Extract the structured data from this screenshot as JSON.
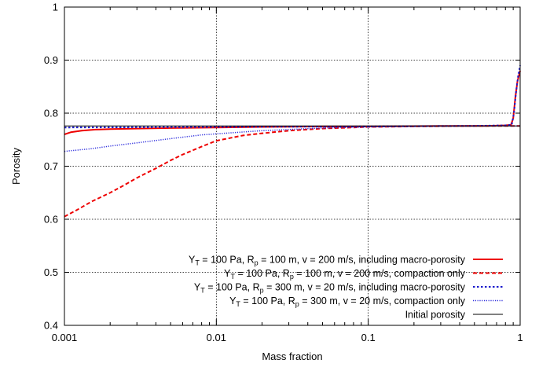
{
  "chart_data": {
    "type": "line",
    "xlabel": "Mass fraction",
    "ylabel": "Porosity",
    "xscale": "log",
    "xlim": [
      0.001,
      1
    ],
    "ylim": [
      0.4,
      1
    ],
    "grid": true,
    "legend_position": "bottom-right",
    "x_ticks": [
      {
        "value": 0.001,
        "label": "0.001"
      },
      {
        "value": 0.01,
        "label": "0.01"
      },
      {
        "value": 0.1,
        "label": "0.1"
      },
      {
        "value": 1,
        "label": "1"
      }
    ],
    "y_ticks": [
      {
        "value": 0.4,
        "label": "0.4"
      },
      {
        "value": 0.5,
        "label": "0.5"
      },
      {
        "value": 0.6,
        "label": "0.6"
      },
      {
        "value": 0.7,
        "label": "0.7"
      },
      {
        "value": 0.8,
        "label": "0.8"
      },
      {
        "value": 0.9,
        "label": "0.9"
      },
      {
        "value": 1.0,
        "label": "1"
      }
    ],
    "series": [
      {
        "legend": {
          "pre": "Y",
          "sub1": "T",
          "mid": " = 100 Pa, R",
          "sub2": "p",
          "post": " = 100 m, v = 200 m/s, including macro-porosity"
        },
        "color": "#ee0000",
        "style": "solid",
        "width": 2,
        "points": [
          [
            0.001,
            0.76
          ],
          [
            0.0011,
            0.764
          ],
          [
            0.0013,
            0.767
          ],
          [
            0.0016,
            0.769
          ],
          [
            0.002,
            0.77
          ],
          [
            0.003,
            0.771
          ],
          [
            0.005,
            0.772
          ],
          [
            0.01,
            0.773
          ],
          [
            0.02,
            0.774
          ],
          [
            0.05,
            0.775
          ],
          [
            0.1,
            0.775
          ],
          [
            0.3,
            0.776
          ],
          [
            0.6,
            0.776
          ],
          [
            0.8,
            0.777
          ],
          [
            0.87,
            0.778
          ],
          [
            0.9,
            0.79
          ],
          [
            0.93,
            0.83
          ],
          [
            0.96,
            0.86
          ],
          [
            1.0,
            0.88
          ]
        ]
      },
      {
        "legend": {
          "pre": "Y",
          "sub1": "T",
          "mid": " = 100 Pa, R",
          "sub2": "p",
          "post": " = 100 m, v = 200 m/s, compaction only"
        },
        "color": "#ee0000",
        "style": "dashed",
        "width": 2,
        "points": [
          [
            0.001,
            0.605
          ],
          [
            0.0012,
            0.617
          ],
          [
            0.0015,
            0.633
          ],
          [
            0.002,
            0.65
          ],
          [
            0.0025,
            0.665
          ],
          [
            0.003,
            0.678
          ],
          [
            0.004,
            0.696
          ],
          [
            0.005,
            0.711
          ],
          [
            0.006,
            0.722
          ],
          [
            0.007,
            0.73
          ],
          [
            0.008,
            0.737
          ],
          [
            0.01,
            0.748
          ],
          [
            0.015,
            0.758
          ],
          [
            0.02,
            0.762
          ],
          [
            0.03,
            0.767
          ],
          [
            0.05,
            0.771
          ],
          [
            0.1,
            0.774
          ],
          [
            0.2,
            0.775
          ],
          [
            0.5,
            0.776
          ],
          [
            1.0,
            0.776
          ]
        ]
      },
      {
        "legend": {
          "pre": "Y",
          "sub1": "T",
          "mid": " = 100 Pa, R",
          "sub2": "p",
          "post": " = 300 m, v = 20 m/s, including macro-porosity"
        },
        "color": "#1a1acc",
        "style": "dotted",
        "width": 2,
        "points": [
          [
            0.001,
            0.773
          ],
          [
            0.01,
            0.774
          ],
          [
            0.1,
            0.775
          ],
          [
            0.5,
            0.776
          ],
          [
            0.8,
            0.777
          ],
          [
            0.88,
            0.778
          ],
          [
            0.91,
            0.8
          ],
          [
            0.94,
            0.84
          ],
          [
            0.97,
            0.87
          ],
          [
            1.0,
            0.89
          ]
        ]
      },
      {
        "legend": {
          "pre": "Y",
          "sub1": "T",
          "mid": " = 100 Pa, R",
          "sub2": "p",
          "post": " = 300 m, v = 20 m/s, compaction only"
        },
        "color": "#3030dd",
        "style": "finedotted",
        "width": 1.5,
        "points": [
          [
            0.001,
            0.728
          ],
          [
            0.0015,
            0.733
          ],
          [
            0.002,
            0.738
          ],
          [
            0.003,
            0.744
          ],
          [
            0.005,
            0.752
          ],
          [
            0.008,
            0.759
          ],
          [
            0.01,
            0.761
          ],
          [
            0.02,
            0.767
          ],
          [
            0.05,
            0.772
          ],
          [
            0.1,
            0.774
          ],
          [
            0.3,
            0.776
          ],
          [
            1.0,
            0.776
          ]
        ]
      },
      {
        "legend": {
          "pre": "Initial porosity",
          "sub1": "",
          "mid": "",
          "sub2": "",
          "post": ""
        },
        "color": "#000000",
        "style": "solid",
        "width": 1,
        "points": [
          [
            0.001,
            0.776
          ],
          [
            1.0,
            0.776
          ]
        ]
      }
    ]
  }
}
